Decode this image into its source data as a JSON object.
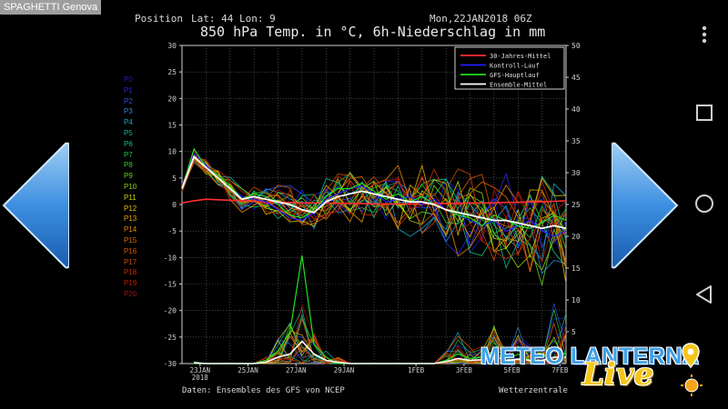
{
  "app": {
    "title": "SPAGHETTI Genova"
  },
  "header": {
    "position_label": "Position",
    "lat_label": "Lat: 44",
    "lon_label": "Lon: 9",
    "run_date": "Mon,22JAN2018 06Z",
    "title": "850 hPa Temp. in °C, 6h-Niederschlag in mm"
  },
  "footer": {
    "source": "Daten: Ensembles des GFS von NCEP",
    "provider": "Wetterzentrale"
  },
  "members": [
    {
      "label": "P0",
      "color": "#1a1acc"
    },
    {
      "label": "P1",
      "color": "#2a2ae0"
    },
    {
      "label": "P2",
      "color": "#3050ee"
    },
    {
      "label": "P3",
      "color": "#2a86e0"
    },
    {
      "label": "P4",
      "color": "#17a9c9"
    },
    {
      "label": "P5",
      "color": "#12b8a0"
    },
    {
      "label": "P6",
      "color": "#14c078"
    },
    {
      "label": "P7",
      "color": "#18c850"
    },
    {
      "label": "P8",
      "color": "#30d030"
    },
    {
      "label": "P9",
      "color": "#60d020"
    },
    {
      "label": "P10",
      "color": "#90d010"
    },
    {
      "label": "P11",
      "color": "#c8d000"
    },
    {
      "label": "P12",
      "color": "#e0c000"
    },
    {
      "label": "P13",
      "color": "#e8a800"
    },
    {
      "label": "P14",
      "color": "#e88800"
    },
    {
      "label": "P15",
      "color": "#e06a00"
    },
    {
      "label": "P16",
      "color": "#d85800"
    },
    {
      "label": "P17",
      "color": "#d04a00"
    },
    {
      "label": "P18",
      "color": "#c83000"
    },
    {
      "label": "P19",
      "color": "#c02000"
    },
    {
      "label": "P20",
      "color": "#b01010"
    }
  ],
  "legend": [
    {
      "label": "30-Jahres-Mittel",
      "color": "#ff3030"
    },
    {
      "label": "Kontroll-Lauf",
      "color": "#2020ff"
    },
    {
      "label": "GFS-Hauptlauf",
      "color": "#20e020"
    },
    {
      "label": "Ensemble-Mittel",
      "color": "#ffffff"
    }
  ],
  "logo": {
    "text": "METEO LANTERNA",
    "live": "Live"
  },
  "chart_data": {
    "type": "line",
    "x_range": [
      "2018-01-22T06",
      "2018-02-07T06"
    ],
    "x_ticks": [
      {
        "date": "2018-01-23",
        "label": "23JAN",
        "sublabel": "2018"
      },
      {
        "date": "2018-01-25",
        "label": "25JAN"
      },
      {
        "date": "2018-01-27",
        "label": "27JAN"
      },
      {
        "date": "2018-01-29",
        "label": "29JAN"
      },
      {
        "date": "2018-02-01",
        "label": "1FEB"
      },
      {
        "date": "2018-02-03",
        "label": "3FEB"
      },
      {
        "date": "2018-02-05",
        "label": "5FEB"
      },
      {
        "date": "2018-02-07",
        "label": "7FEB"
      }
    ],
    "y_left": {
      "min": -30,
      "max": 30,
      "ticks": [
        30,
        25,
        20,
        15,
        10,
        5,
        0,
        -5,
        -10,
        -15,
        -20,
        -25,
        -30
      ]
    },
    "y_right": {
      "min": 0,
      "max": 50,
      "ticks": [
        50,
        45,
        40,
        35,
        30,
        25,
        20,
        15,
        10,
        5
      ]
    },
    "grid": true,
    "legend_position": "top-right",
    "temperature": {
      "days": [
        0,
        0.5,
        1,
        1.5,
        2,
        2.5,
        3,
        3.5,
        4,
        4.5,
        5,
        5.5,
        6,
        6.5,
        7,
        7.5,
        8,
        8.5,
        9,
        9.5,
        10,
        10.5,
        11,
        11.5,
        12,
        12.5,
        13,
        13.5,
        14,
        14.5,
        15,
        15.5,
        16
      ],
      "climate_mean": [
        0.3,
        0.7,
        1.0,
        0.9,
        0.8,
        0.7,
        0.6,
        0.5,
        0.4,
        0.4,
        0.3,
        0.3,
        0.3,
        0.2,
        0.2,
        0.2,
        0.1,
        0.1,
        0.1,
        0.1,
        0.1,
        0.2,
        0.2,
        0.2,
        0.3,
        0.3,
        0.3,
        0.4,
        0.4,
        0.5,
        0.5,
        0.6,
        0.7
      ],
      "ensemble_mean": [
        3,
        9,
        7,
        5,
        3,
        1,
        1.5,
        1,
        0.5,
        0,
        -1,
        -1.5,
        0.5,
        1.5,
        2,
        2.5,
        2,
        1.5,
        1,
        0.5,
        0.5,
        0,
        -1,
        -1.5,
        -2,
        -2.5,
        -3,
        -3,
        -3.5,
        -4,
        -4.5,
        -4,
        -4.5
      ],
      "control_run": [
        3,
        9.5,
        7.5,
        5,
        3,
        1.5,
        1,
        0.5,
        -1,
        -2.5,
        -3,
        -1.5,
        1,
        2,
        3,
        3.5,
        2,
        0.5,
        1,
        1.5,
        0,
        1,
        -1,
        -2,
        -3,
        -4,
        -3,
        -5,
        -4,
        -3,
        -5,
        -6,
        -5
      ],
      "main_run": [
        3,
        10.5,
        7,
        5.5,
        3.5,
        1,
        2,
        1.5,
        0,
        -2,
        -2.5,
        -1,
        1.5,
        3,
        3,
        4,
        2.5,
        1,
        2,
        0.5,
        1.5,
        0,
        -1,
        -2,
        -2.5,
        -4,
        -2,
        -3,
        -4,
        -4.5,
        -3.5,
        -2,
        -3
      ]
    },
    "precipitation": {
      "days": [
        0.5,
        1,
        1.5,
        2,
        2.5,
        3,
        3.5,
        4,
        4.5,
        5,
        5.5,
        6,
        6.5,
        7,
        7.5,
        8,
        8.5,
        9,
        9.5,
        10,
        10.5,
        11,
        11.5,
        12,
        12.5,
        13,
        13.5,
        14,
        14.5,
        15,
        15.5,
        16
      ],
      "ensemble_mean": [
        0.1,
        0,
        0,
        0,
        0,
        0,
        0.2,
        1,
        1.5,
        3.5,
        1.5,
        0.5,
        0.2,
        0,
        0,
        0,
        0,
        0,
        0,
        0,
        0,
        0.3,
        0.8,
        0.5,
        0.6,
        1.2,
        0.5,
        0.7,
        0.5,
        0.5,
        1,
        1
      ],
      "main_run": [
        0,
        0,
        0,
        0,
        0,
        0,
        0.5,
        2,
        5,
        17,
        3,
        1,
        0,
        0,
        0,
        0,
        0,
        0,
        0,
        0,
        0,
        0.5,
        1.5,
        0.8,
        1,
        2,
        0.5,
        1.5,
        0.5,
        1,
        2,
        1.5
      ],
      "max_member": [
        0.3,
        0,
        0,
        0,
        0,
        0,
        1,
        4,
        9,
        12,
        5,
        2,
        1,
        0,
        0,
        0,
        0,
        0,
        0,
        0,
        0,
        2,
        5,
        3,
        4,
        6,
        2,
        7,
        3,
        2,
        10,
        8
      ]
    }
  }
}
